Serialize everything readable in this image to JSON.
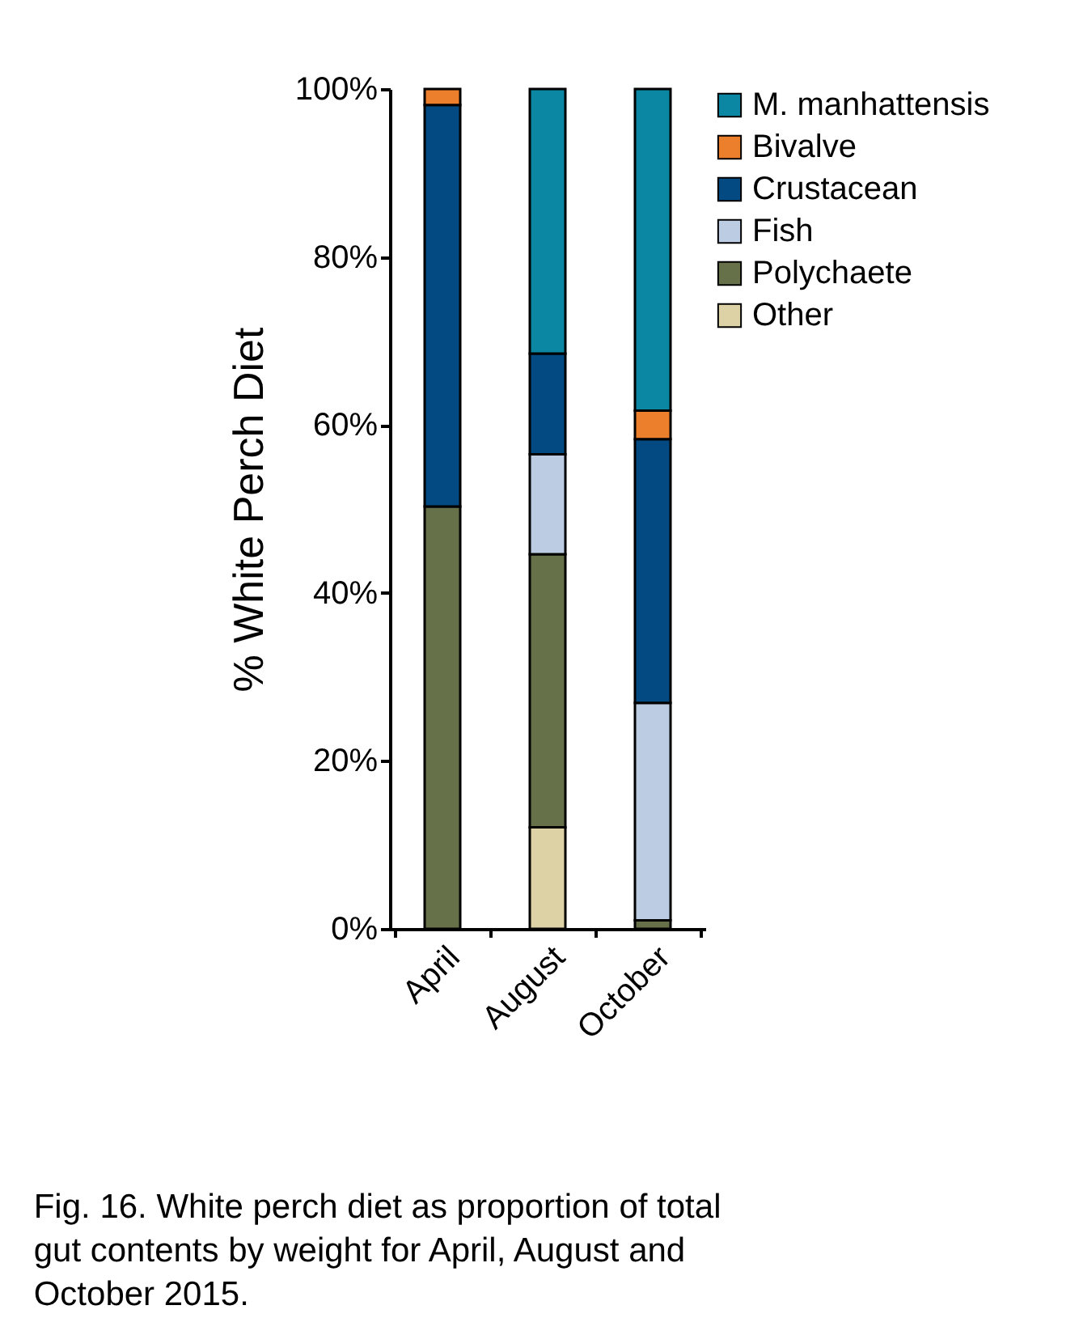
{
  "chart_data": {
    "type": "bar",
    "stacked": true,
    "ylabel": "% White Perch Diet",
    "categories": [
      "April",
      "August",
      "October"
    ],
    "series": [
      {
        "name": "Other",
        "color": "#ddd1a6",
        "values": [
          null,
          12.1,
          null
        ]
      },
      {
        "name": "Polychaete",
        "color": "#667149",
        "values": [
          50.3,
          32.5,
          1.0
        ]
      },
      {
        "name": "Fish",
        "color": "#bccce2",
        "values": [
          null,
          11.9,
          25.9
        ]
      },
      {
        "name": "Crustacean",
        "color": "#044a82",
        "values": [
          47.8,
          12.0,
          31.4
        ]
      },
      {
        "name": "Bivalve",
        "color": "#ec7f2c",
        "values": [
          1.9,
          null,
          3.4
        ]
      },
      {
        "name": "M. manhattensis",
        "color": "#0c87a3",
        "values": [
          null,
          31.5,
          38.3
        ]
      }
    ],
    "ylim": [
      0,
      100
    ],
    "yticks": [
      {
        "value": 0,
        "label": "0%"
      },
      {
        "value": 20,
        "label": "20%"
      },
      {
        "value": 40,
        "label": "40%"
      },
      {
        "value": 60,
        "label": "60%"
      },
      {
        "value": 80,
        "label": "80%"
      },
      {
        "value": 100,
        "label": "100%"
      }
    ],
    "grid": false,
    "legend": "top right",
    "annotations": [
      "Fig. 16. White perch diet as proportion of total gut contents by weight for April, August and October 2015."
    ]
  }
}
